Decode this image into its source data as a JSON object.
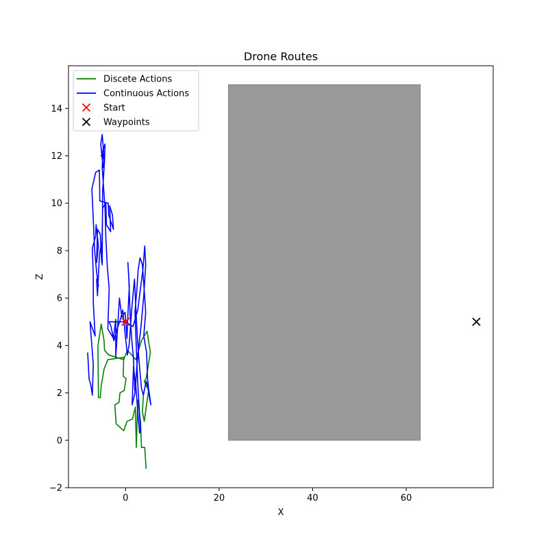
{
  "chart_data": {
    "type": "line",
    "title": "Drone Routes",
    "xlabel": "X",
    "ylabel": "Z",
    "xlim": [
      -12.2,
      78.6
    ],
    "ylim": [
      -2,
      15.8
    ],
    "xticks": [
      0,
      20,
      40,
      60
    ],
    "yticks": [
      -2,
      0,
      2,
      4,
      6,
      8,
      10,
      12,
      14
    ],
    "grid": false,
    "legend_position": "upper-left",
    "obstacle": {
      "x": [
        22,
        63
      ],
      "z": [
        0,
        15
      ],
      "color": "#999999"
    },
    "series": [
      {
        "name": "Discete Actions",
        "color": "#008000",
        "points": [
          [
            4.4,
            -1.2
          ],
          [
            4.1,
            -0.3
          ],
          [
            3.4,
            -0.3
          ],
          [
            3.2,
            0.8
          ],
          [
            2.6,
            1.7
          ],
          [
            2.3,
            -0.3
          ],
          [
            2.1,
            1.4
          ],
          [
            1.5,
            0.9
          ],
          [
            0.3,
            0.8
          ],
          [
            -0.4,
            0.4
          ],
          [
            -2.0,
            0.7
          ],
          [
            -2.3,
            1.5
          ],
          [
            -1.4,
            1.6
          ],
          [
            -1.2,
            2.0
          ],
          [
            -0.3,
            2.1
          ],
          [
            0.1,
            2.6
          ],
          [
            -0.5,
            2.7
          ],
          [
            -0.4,
            3.5
          ],
          [
            -3.8,
            3.4
          ],
          [
            -4.6,
            3.0
          ],
          [
            -5.2,
            2.3
          ],
          [
            -5.4,
            1.8
          ],
          [
            -5.8,
            1.8
          ],
          [
            -5.9,
            4.0
          ],
          [
            -5.2,
            4.9
          ],
          [
            -4.6,
            4.2
          ],
          [
            -4.5,
            3.8
          ],
          [
            -3.6,
            3.6
          ],
          [
            -0.4,
            3.4
          ],
          [
            0.4,
            3.8
          ],
          [
            2.2,
            3.4
          ],
          [
            3.4,
            4.2
          ],
          [
            4.6,
            4.6
          ],
          [
            5.3,
            3.7
          ],
          [
            4.4,
            2.6
          ],
          [
            4.0,
            2.5
          ],
          [
            4.9,
            2.1
          ],
          [
            4.0,
            0.8
          ],
          [
            3.6,
            1.2
          ],
          [
            3.8,
            1.9
          ]
        ]
      },
      {
        "name": "Continuous Actions",
        "color": "#0000ff",
        "points": [
          [
            -8.1,
            3.7
          ],
          [
            -7.8,
            2.6
          ],
          [
            -7.4,
            2.3
          ],
          [
            -7.1,
            1.9
          ],
          [
            -6.9,
            3.2
          ],
          [
            -7.6,
            5.0
          ],
          [
            -6.5,
            4.4
          ],
          [
            -6.9,
            5.8
          ],
          [
            -6.9,
            6.9
          ],
          [
            -7.1,
            8.1
          ],
          [
            -6.4,
            8.6
          ],
          [
            -6.3,
            9.1
          ],
          [
            -5.8,
            8.2
          ],
          [
            -6.2,
            7.5
          ],
          [
            -6.0,
            8.9
          ],
          [
            -5.4,
            8.7
          ],
          [
            -5.1,
            7.5
          ],
          [
            -4.9,
            9.8
          ],
          [
            -4.2,
            10.0
          ],
          [
            -4.1,
            9.1
          ],
          [
            -3.2,
            8.8
          ],
          [
            -3.4,
            9.9
          ],
          [
            -2.8,
            9.5
          ],
          [
            -2.6,
            8.9
          ],
          [
            -3.6,
            9.5
          ],
          [
            -3.7,
            10.0
          ],
          [
            -5.5,
            10.1
          ],
          [
            -5.6,
            11.4
          ],
          [
            -6.4,
            11.3
          ],
          [
            -7.2,
            10.6
          ],
          [
            -7.1,
            10.2
          ],
          [
            -6.6,
            8.0
          ],
          [
            -6.2,
            7.1
          ],
          [
            -5.8,
            6.5
          ],
          [
            -6.2,
            6.8
          ],
          [
            -6.0,
            6.1
          ],
          [
            -5.6,
            7.8
          ],
          [
            -5.2,
            8.3
          ],
          [
            -5.0,
            7.4
          ],
          [
            -4.9,
            10.5
          ],
          [
            -4.5,
            11.8
          ],
          [
            -4.4,
            12.5
          ],
          [
            -5.2,
            12.0
          ],
          [
            -4.7,
            12.2
          ],
          [
            -5.0,
            12.9
          ],
          [
            -5.3,
            12.5
          ],
          [
            -4.8,
            11.5
          ],
          [
            -4.6,
            11.8
          ],
          [
            -4.8,
            12.3
          ],
          [
            -5.0,
            11.5
          ],
          [
            -4.4,
            9.8
          ],
          [
            -4.2,
            8.5
          ],
          [
            -3.9,
            7.3
          ],
          [
            -3.5,
            6.4
          ],
          [
            -3.8,
            4.7
          ],
          [
            -2.6,
            4.3
          ],
          [
            -2.1,
            5.1
          ],
          [
            -2.1,
            3.5
          ],
          [
            -1.3,
            6.0
          ],
          [
            -0.8,
            5.2
          ],
          [
            -0.1,
            5.4
          ],
          [
            0.3,
            4.3
          ],
          [
            0.5,
            5.3
          ],
          [
            0.8,
            6.5
          ],
          [
            0.5,
            7.5
          ],
          [
            0.7,
            6.8
          ],
          [
            1.0,
            5.2
          ],
          [
            1.3,
            4.3
          ],
          [
            1.7,
            3.4
          ],
          [
            2.0,
            2.0
          ],
          [
            1.4,
            1.5
          ],
          [
            1.7,
            3.1
          ],
          [
            2.2,
            2.3
          ],
          [
            2.6,
            1.2
          ],
          [
            3.0,
            0.3
          ],
          [
            3.2,
            0.4
          ],
          [
            2.6,
            2.4
          ],
          [
            2.0,
            5.4
          ],
          [
            2.4,
            6.3
          ],
          [
            2.7,
            7.2
          ],
          [
            3.1,
            7.7
          ],
          [
            3.6,
            7.4
          ],
          [
            4.0,
            6.3
          ],
          [
            4.3,
            5.4
          ],
          [
            3.9,
            4.4
          ],
          [
            4.5,
            3.7
          ],
          [
            4.7,
            2.6
          ],
          [
            5.1,
            1.8
          ],
          [
            5.4,
            1.5
          ],
          [
            5.0,
            2.1
          ],
          [
            4.4,
            2.5
          ],
          [
            3.8,
            1.9
          ],
          [
            3.4,
            2.2
          ],
          [
            2.9,
            3.3
          ],
          [
            2.5,
            4.4
          ],
          [
            2.2,
            5.6
          ],
          [
            1.9,
            6.8
          ],
          [
            1.3,
            5.5
          ],
          [
            0.8,
            4.1
          ],
          [
            0.4,
            3.6
          ],
          [
            -0.1,
            4.5
          ],
          [
            -0.6,
            5.5
          ],
          [
            -1.1,
            5.1
          ],
          [
            -1.8,
            4.7
          ],
          [
            -2.5,
            4.2
          ],
          [
            -3.1,
            4.8
          ],
          [
            -3.5,
            5.0
          ],
          [
            0.0,
            5.0
          ],
          [
            1.6,
            4.8
          ],
          [
            2.6,
            5.5
          ],
          [
            3.7,
            7.2
          ],
          [
            4.1,
            8.2
          ],
          [
            4.3,
            7.4
          ],
          [
            3.9,
            6.1
          ],
          [
            3.3,
            4.8
          ],
          [
            2.8,
            3.9
          ],
          [
            2.4,
            3.1
          ],
          [
            2.1,
            2.1
          ]
        ]
      }
    ],
    "markers": [
      {
        "name": "Start",
        "symbol": "x",
        "color": "#ff0000",
        "points": [
          [
            0,
            5
          ]
        ]
      },
      {
        "name": "Waypoints",
        "symbol": "x",
        "color": "#000000",
        "points": [
          [
            75,
            5
          ]
        ]
      }
    ]
  }
}
